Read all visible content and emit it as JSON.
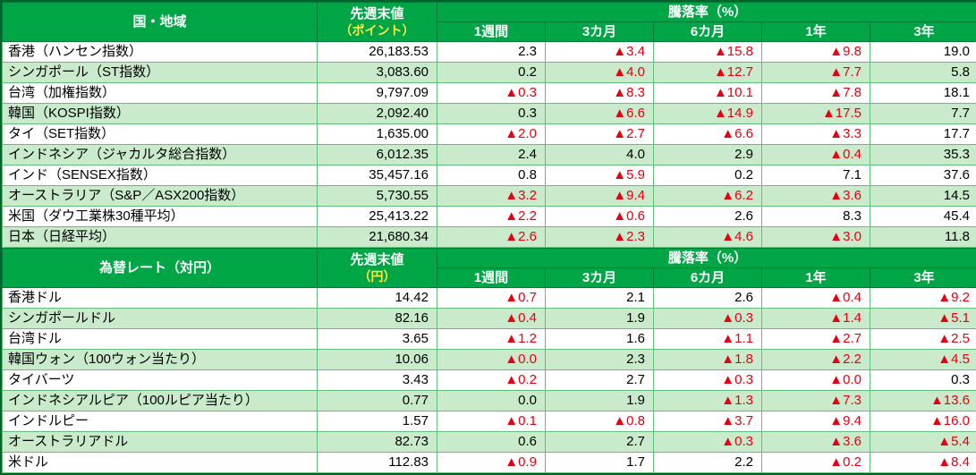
{
  "colors": {
    "header_bg": "#00A546",
    "header_border": "#007A36",
    "grid_border": "#63BE7B",
    "alt_row_bg": "#C9EACB",
    "negative_text": "#E60012",
    "unit_text": "#FFE93C",
    "outer_border": "#00632C"
  },
  "legend": {
    "negative_marker": "▲"
  },
  "tables": [
    {
      "title": "国・地域",
      "value_header": {
        "line1": "先週末値",
        "line2": "（ポイント）"
      },
      "change_header": "騰落率（%）",
      "periods": [
        "1週間",
        "3カ月",
        "6カ月",
        "1年",
        "3年"
      ],
      "rows": [
        {
          "name": "香港（ハンセン指数）",
          "value": "26,183.53",
          "changes": [
            "2.3",
            "▲3.4",
            "▲15.8",
            "▲9.8",
            "19.0"
          ]
        },
        {
          "name": "シンガポール（ST指数）",
          "value": "3,083.60",
          "changes": [
            "0.2",
            "▲4.0",
            "▲12.7",
            "▲7.7",
            "5.8"
          ]
        },
        {
          "name": "台湾（加権指数）",
          "value": "9,797.09",
          "changes": [
            "▲0.3",
            "▲8.3",
            "▲10.1",
            "▲7.8",
            "18.1"
          ]
        },
        {
          "name": "韓国（KOSPI指数）",
          "value": "2,092.40",
          "changes": [
            "0.3",
            "▲6.6",
            "▲14.9",
            "▲17.5",
            "7.7"
          ]
        },
        {
          "name": "タイ（SET指数）",
          "value": "1,635.00",
          "changes": [
            "▲2.0",
            "▲2.7",
            "▲6.6",
            "▲3.3",
            "17.7"
          ]
        },
        {
          "name": "インドネシア（ジャカルタ総合指数）",
          "value": "6,012.35",
          "changes": [
            "2.4",
            "4.0",
            "2.9",
            "▲0.4",
            "35.3"
          ]
        },
        {
          "name": "インド（SENSEX指数）",
          "value": "35,457.16",
          "changes": [
            "0.8",
            "▲5.9",
            "0.2",
            "7.1",
            "37.6"
          ]
        },
        {
          "name": "オーストラリア（S&P／ASX200指数）",
          "value": "5,730.55",
          "changes": [
            "▲3.2",
            "▲9.4",
            "▲6.2",
            "▲3.6",
            "14.5"
          ]
        },
        {
          "name": "米国（ダウ工業株30種平均）",
          "value": "25,413.22",
          "changes": [
            "▲2.2",
            "▲0.6",
            "2.6",
            "8.3",
            "45.4"
          ]
        },
        {
          "name": "日本（日経平均）",
          "value": "21,680.34",
          "changes": [
            "▲2.6",
            "▲2.3",
            "▲4.6",
            "▲3.0",
            "11.8"
          ]
        }
      ]
    },
    {
      "title": "為替レート（対円）",
      "value_header": {
        "line1": "先週末値",
        "line2": "（円）"
      },
      "change_header": "騰落率（%）",
      "periods": [
        "1週間",
        "3カ月",
        "6カ月",
        "1年",
        "3年"
      ],
      "rows": [
        {
          "name": "香港ドル",
          "value": "14.42",
          "changes": [
            "▲0.7",
            "2.1",
            "2.6",
            "▲0.4",
            "▲9.2"
          ]
        },
        {
          "name": "シンガポールドル",
          "value": "82.16",
          "changes": [
            "▲0.4",
            "1.9",
            "▲0.3",
            "▲1.4",
            "▲5.1"
          ]
        },
        {
          "name": "台湾ドル",
          "value": "3.65",
          "changes": [
            "▲1.2",
            "1.6",
            "▲1.1",
            "▲2.7",
            "▲2.5"
          ]
        },
        {
          "name": "韓国ウォン（100ウォン当たり）",
          "value": "10.06",
          "changes": [
            "▲0.0",
            "2.3",
            "▲1.8",
            "▲2.2",
            "▲4.5"
          ]
        },
        {
          "name": "タイバーツ",
          "value": "3.43",
          "changes": [
            "▲0.2",
            "2.7",
            "▲0.3",
            "▲0.0",
            "0.3"
          ]
        },
        {
          "name": "インドネシアルピア（100ルピア当たり）",
          "value": "0.77",
          "changes": [
            "0.0",
            "1.9",
            "▲1.3",
            "▲7.3",
            "▲13.6"
          ]
        },
        {
          "name": "インドルピー",
          "value": "1.57",
          "changes": [
            "▲0.1",
            "▲0.8",
            "▲3.7",
            "▲9.4",
            "▲16.0"
          ]
        },
        {
          "name": "オーストラリアドル",
          "value": "82.73",
          "changes": [
            "0.6",
            "2.7",
            "▲0.3",
            "▲3.6",
            "▲5.4"
          ]
        },
        {
          "name": "米ドル",
          "value": "112.83",
          "changes": [
            "▲0.9",
            "1.7",
            "2.2",
            "▲0.2",
            "▲8.4"
          ]
        }
      ]
    }
  ]
}
